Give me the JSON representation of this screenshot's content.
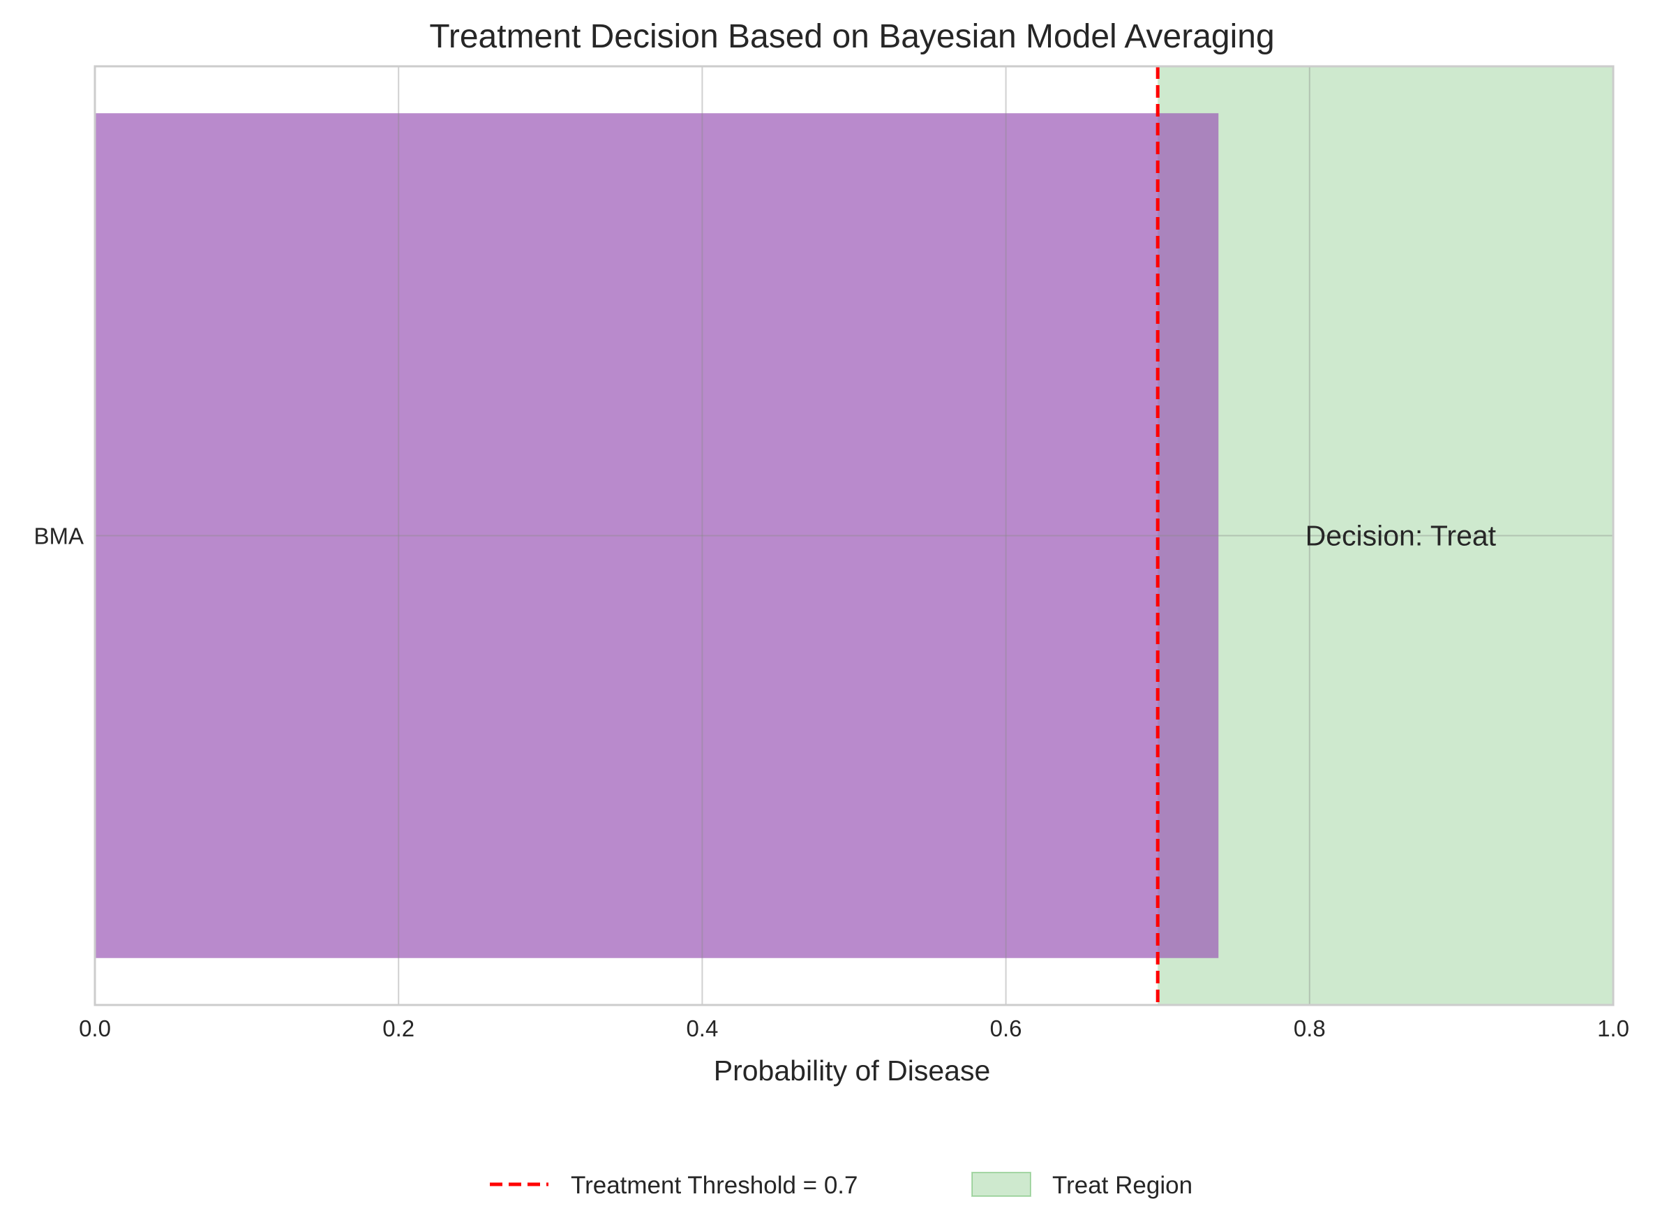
{
  "chart_data": {
    "type": "bar",
    "orientation": "horizontal",
    "title": "Treatment Decision Based on Bayesian Model Averaging",
    "xlabel": "Probability of Disease",
    "ylabel": "",
    "xlim": [
      0.0,
      1.0
    ],
    "xticks": [
      "0.0",
      "0.2",
      "0.4",
      "0.6",
      "0.8",
      "1.0"
    ],
    "categories": [
      "BMA"
    ],
    "values": [
      0.74
    ],
    "bar_color": "#9b59b6",
    "threshold": {
      "value": 0.7,
      "label": "Treatment Threshold = 0.7",
      "color": "#ff0000",
      "style": "dashed"
    },
    "treat_region": {
      "from": 0.7,
      "to": 1.0,
      "label": "Treat Region",
      "color": "#2ca02c"
    },
    "annotation": {
      "text": "Decision: Treat",
      "x": 0.86,
      "category": "BMA",
      "color": "#008000"
    },
    "grid": true,
    "legend_placement": "bottom-center"
  }
}
